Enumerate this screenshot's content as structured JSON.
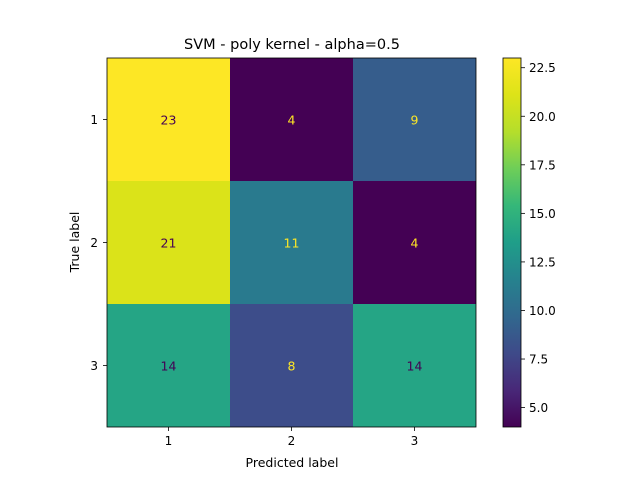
{
  "chart_data": {
    "type": "heatmap",
    "title": "SVM - poly kernel - alpha=0.5",
    "xlabel": "Predicted label",
    "ylabel": "True label",
    "x_categories": [
      "1",
      "2",
      "3"
    ],
    "y_categories": [
      "1",
      "2",
      "3"
    ],
    "matrix": [
      [
        23,
        4,
        9
      ],
      [
        21,
        11,
        4
      ],
      [
        14,
        8,
        14
      ]
    ],
    "colormap": "viridis",
    "color_range": [
      4,
      23
    ],
    "colorbar_ticks": [
      "5.0",
      "7.5",
      "10.0",
      "12.5",
      "15.0",
      "17.5",
      "20.0",
      "22.5"
    ],
    "colorbar_tick_values": [
      5.0,
      7.5,
      10.0,
      12.5,
      15.0,
      17.5,
      20.0,
      22.5
    ],
    "grid": false,
    "colorbar_position": "right"
  }
}
